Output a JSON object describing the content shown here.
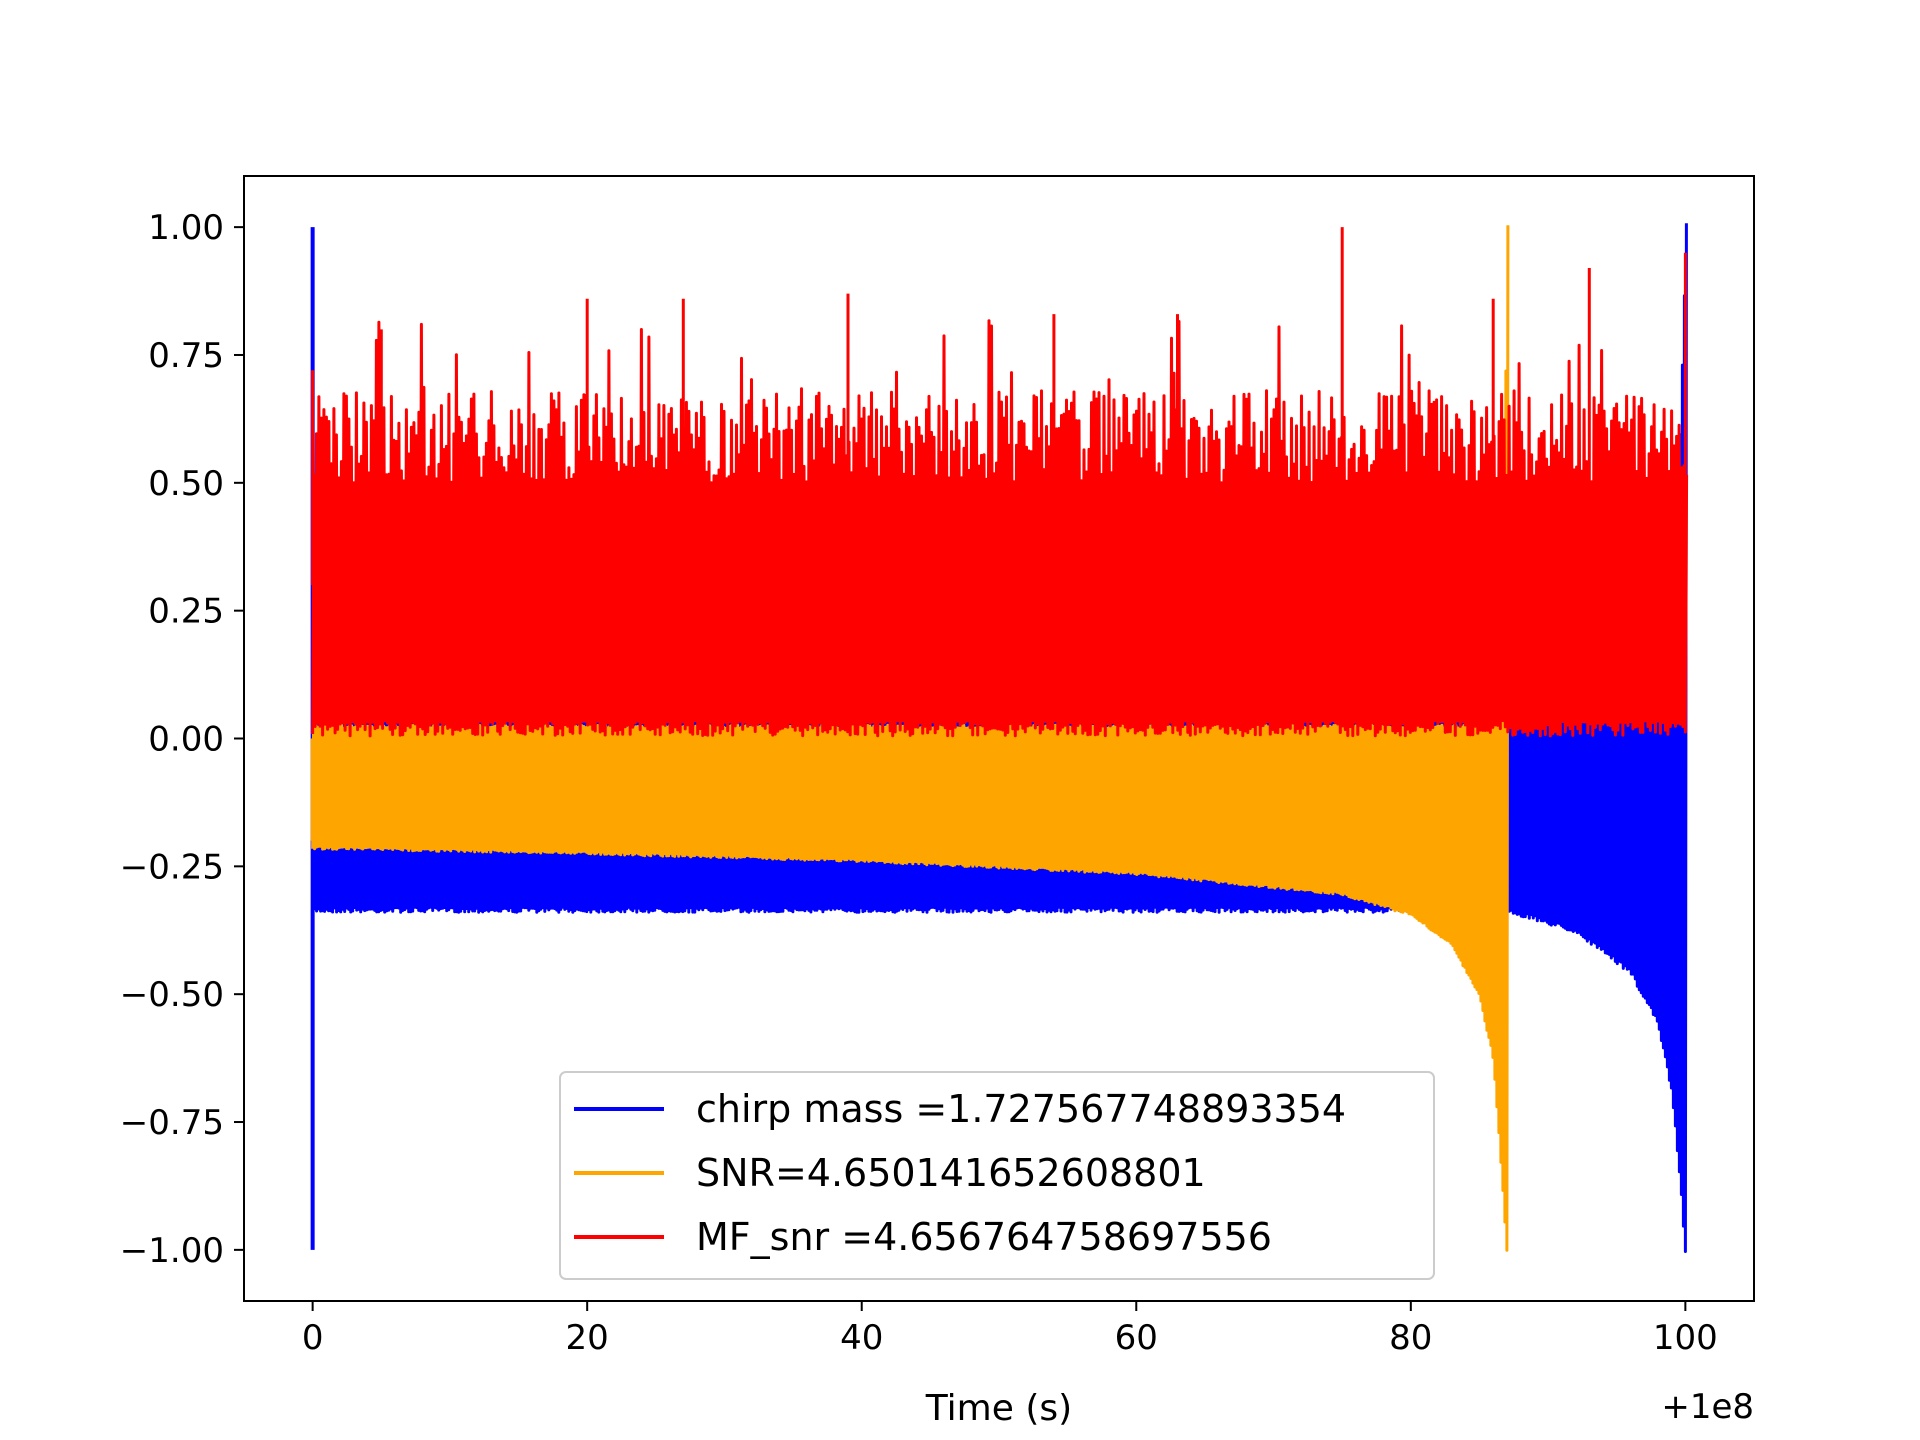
{
  "chart_data": {
    "type": "line",
    "title": "",
    "xlabel": "Time (s)",
    "ylabel": "",
    "x_offset_label": "+1e8",
    "xlim": [
      -5,
      105
    ],
    "ylim": [
      -1.1,
      1.1
    ],
    "x_ticks": [
      0,
      20,
      40,
      60,
      80,
      100
    ],
    "x_tick_labels": [
      "0",
      "20",
      "40",
      "60",
      "80",
      "100"
    ],
    "y_ticks": [
      1.0,
      0.75,
      0.5,
      0.25,
      0.0,
      -0.25,
      -0.5,
      -0.75,
      -1.0
    ],
    "y_tick_labels": [
      "1.00",
      "0.75",
      "0.50",
      "0.25",
      "0.00",
      "−0.25",
      "−0.50",
      "−0.75",
      "−1.00"
    ],
    "grid": false,
    "legend_position": "lower-center",
    "series": [
      {
        "name": "chirp mass =1.727567748893354",
        "color": "#0000ff",
        "x_range": [
          0,
          100
        ],
        "lower_envelope": [
          [
            0,
            -0.33
          ],
          [
            20,
            -0.33
          ],
          [
            87,
            -0.33
          ],
          [
            92,
            -0.37
          ],
          [
            96,
            -0.45
          ],
          [
            98,
            -0.55
          ],
          [
            99,
            -0.68
          ],
          [
            99.6,
            -0.85
          ],
          [
            100,
            -1.0
          ]
        ],
        "upper_envelope": [
          [
            0,
            0.03
          ],
          [
            87,
            0.03
          ],
          [
            99,
            0.05
          ],
          [
            100,
            1.0
          ]
        ],
        "start_spike": [
          -1.0,
          1.0
        ]
      },
      {
        "name": "SNR=4.650141652608801",
        "color": "#ffa500",
        "x_range": [
          0,
          87
        ],
        "lower_envelope": [
          [
            0,
            -0.21
          ],
          [
            20,
            -0.22
          ],
          [
            40,
            -0.235
          ],
          [
            60,
            -0.26
          ],
          [
            75,
            -0.3
          ],
          [
            80,
            -0.34
          ],
          [
            83,
            -0.4
          ],
          [
            85,
            -0.5
          ],
          [
            86,
            -0.62
          ],
          [
            86.5,
            -0.8
          ],
          [
            87,
            -1.0
          ]
        ],
        "upper_envelope": [
          [
            0,
            0.02
          ],
          [
            80,
            0.02
          ],
          [
            86.5,
            0.02
          ],
          [
            87,
            1.0
          ]
        ],
        "start_spike": [
          -0.2,
          0.0
        ]
      },
      {
        "name": "MF_snr =4.656764758697556",
        "color": "#ff0000",
        "x_range": [
          0,
          100
        ],
        "lower_envelope": [
          [
            0,
            0.0
          ],
          [
            100,
            0.0
          ]
        ],
        "upper_envelope": [
          [
            0,
            0.62
          ],
          [
            100,
            0.62
          ]
        ],
        "peak_points": [
          [
            0,
            0.72
          ],
          [
            5,
            0.8
          ],
          [
            20,
            0.86
          ],
          [
            27,
            0.86
          ],
          [
            39,
            0.87
          ],
          [
            54,
            0.83
          ],
          [
            63,
            0.83
          ],
          [
            75,
            1.0
          ],
          [
            86,
            0.86
          ],
          [
            93,
            0.92
          ],
          [
            100,
            0.95
          ]
        ]
      }
    ]
  }
}
